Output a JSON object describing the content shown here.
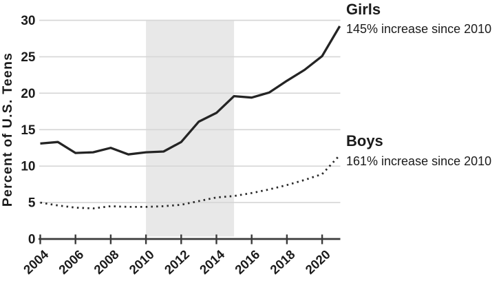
{
  "chart_data": {
    "type": "line",
    "title": "",
    "xlabel": "",
    "ylabel": "Percent of U.S. Teens",
    "x": [
      2004,
      2005,
      2006,
      2007,
      2008,
      2009,
      2010,
      2011,
      2012,
      2013,
      2014,
      2015,
      2016,
      2017,
      2018,
      2019,
      2020,
      2021
    ],
    "series": [
      {
        "name": "Girls",
        "annotation": "145% increase since 2010",
        "line_style": "solid",
        "color": "#242424",
        "values": [
          13.1,
          13.3,
          11.8,
          11.9,
          12.5,
          11.6,
          11.9,
          12.0,
          13.3,
          16.1,
          17.3,
          19.6,
          19.4,
          20.1,
          21.7,
          23.2,
          25.1,
          29.2
        ]
      },
      {
        "name": "Boys",
        "annotation": "161% increase since 2010",
        "line_style": "dotted",
        "color": "#2a2a2a",
        "values": [
          5.0,
          4.6,
          4.3,
          4.2,
          4.5,
          4.4,
          4.4,
          4.5,
          4.7,
          5.2,
          5.7,
          5.9,
          6.3,
          6.8,
          7.4,
          8.1,
          8.9,
          11.5
        ]
      }
    ],
    "xticks": [
      2004,
      2006,
      2008,
      2010,
      2012,
      2014,
      2016,
      2018,
      2020
    ],
    "yticks": [
      0,
      5,
      10,
      15,
      20,
      25,
      30
    ],
    "xlim": [
      2004,
      2021
    ],
    "ylim": [
      0,
      30
    ],
    "grid": true,
    "legend_position": "annotations-right",
    "shaded_band": {
      "x_start": 2010,
      "x_end": 2015,
      "color": "#e8e8e8"
    },
    "colors": {
      "grid": "#d6d6d6",
      "axis": "#3a3a3a",
      "text": "#1b1b1b"
    }
  }
}
